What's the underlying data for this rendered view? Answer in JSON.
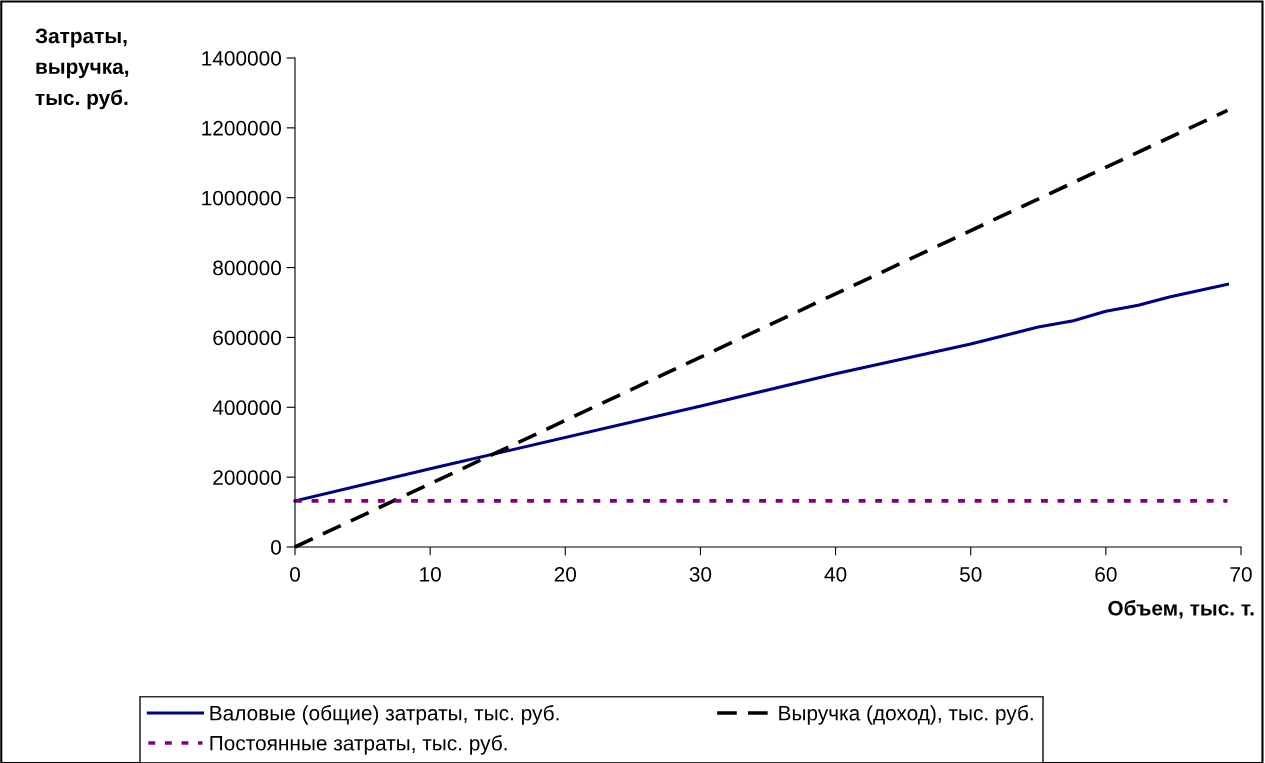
{
  "chart_data": {
    "type": "line",
    "xlabel": "Объем, тыс. т.",
    "ylabel": "Затраты,\nвыручка,\nтыс. руб.",
    "xlim": [
      0,
      70
    ],
    "xticks": [
      0,
      10,
      20,
      30,
      40,
      50,
      60,
      70
    ],
    "ylim": [
      0,
      1400000
    ],
    "yticks": [
      0,
      200000,
      400000,
      600000,
      800000,
      1000000,
      1200000,
      1400000
    ],
    "grid": false,
    "legend": "bottom",
    "series": [
      {
        "name": "Валовые (общие) затраты, тыс. руб.",
        "color": "#000080",
        "line_style": "solid",
        "x": [
          0,
          10,
          30.2,
          40,
          50,
          55,
          57.6,
          60,
          62.4,
          64.7,
          69
        ],
        "values": [
          132000,
          224000,
          405000,
          496000,
          581000,
          630000,
          648000,
          675000,
          692000,
          716000,
          752000
        ]
      },
      {
        "name": "Выручка (доход), тыс. руб.",
        "color": "#000000",
        "line_style": "dashed",
        "x": [
          0,
          69
        ],
        "values": [
          0,
          1250000
        ]
      },
      {
        "name": "Постоянные затраты, тыс. руб.",
        "color": "#800080",
        "line_style": "dotted",
        "x": [
          0,
          69
        ],
        "values": [
          132000,
          132000
        ]
      }
    ]
  }
}
